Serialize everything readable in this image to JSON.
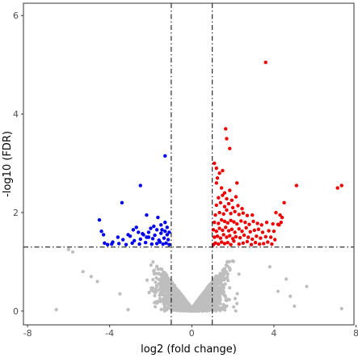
{
  "chart_data": {
    "type": "scatter",
    "xlabel": "log2 (fold change)",
    "ylabel": "-log10 (FDR)",
    "xlim": [
      -8.2,
      7.9
    ],
    "ylim": [
      -0.28,
      6.25
    ],
    "x_ticks": [
      -8,
      -4,
      0,
      4,
      8
    ],
    "x_tick_labels": [
      "-8",
      "-4",
      "0",
      "4",
      "8"
    ],
    "y_ticks": [
      0,
      2,
      4,
      6
    ],
    "y_tick_labels": [
      "0",
      "2",
      "4",
      "6"
    ],
    "grid": false,
    "legend": "none",
    "thresholds": {
      "x": [
        -1,
        1
      ],
      "y": 1.3,
      "line_style": "dash-dot"
    },
    "colors": {
      "up": "#ee0000",
      "down": "#0000ee",
      "not_significant": "#bebebe",
      "threshold_line": "#000000",
      "panel_border": "#333333"
    },
    "series": [
      {
        "group": "up",
        "color": "#ee0000",
        "x": [
          3.6,
          1.65,
          1.7,
          1.85,
          1.1,
          1.2,
          1.35,
          1.5,
          1.25,
          2.2,
          7.3,
          7.1,
          5.1,
          4.5,
          4.1,
          4.3,
          4.4,
          4.35,
          4.25,
          1.05,
          1.15,
          1.3,
          1.45,
          1.6,
          1.75,
          1.9,
          2.05,
          2.3,
          2.5,
          2.7,
          2.9,
          3.1,
          3.3,
          3.5,
          3.7,
          3.9,
          1.1,
          1.25,
          1.4,
          1.55,
          1.7,
          1.85,
          2.0,
          2.15,
          2.35,
          2.55,
          2.75,
          2.95,
          3.15,
          3.35,
          3.6,
          3.85,
          4.05,
          1.05,
          1.2,
          1.35,
          1.5,
          1.65,
          1.8,
          1.95,
          2.1,
          2.3,
          2.45,
          2.65,
          2.85,
          3.05,
          3.25,
          3.45,
          3.75,
          4.0,
          1.1,
          1.3,
          1.45,
          1.6,
          1.75,
          1.9,
          2.05,
          2.2,
          2.4,
          2.6,
          2.8,
          3.0,
          3.2,
          3.4,
          3.65,
          3.95,
          4.2,
          1.15,
          1.35,
          1.55,
          1.7,
          1.9,
          2.1,
          2.3,
          2.5,
          2.7,
          2.95,
          1.2,
          1.4,
          1.6,
          1.8,
          2.0,
          2.25,
          2.45,
          1.3,
          1.5,
          1.7,
          1.95,
          2.15,
          1.45,
          1.85,
          1.2,
          1.6
        ],
        "y": [
          5.05,
          3.7,
          3.5,
          3.3,
          3.0,
          2.9,
          2.8,
          2.85,
          2.7,
          2.6,
          2.55,
          2.5,
          2.55,
          2.2,
          2.0,
          1.95,
          1.9,
          1.8,
          1.75,
          1.35,
          1.38,
          1.36,
          1.4,
          1.37,
          1.39,
          1.35,
          1.42,
          1.36,
          1.38,
          1.41,
          1.35,
          1.39,
          1.36,
          1.37,
          1.4,
          1.36,
          1.5,
          1.52,
          1.48,
          1.55,
          1.5,
          1.53,
          1.47,
          1.51,
          1.49,
          1.54,
          1.5,
          1.46,
          1.52,
          1.48,
          1.51,
          1.5,
          1.45,
          1.65,
          1.62,
          1.68,
          1.64,
          1.7,
          1.63,
          1.66,
          1.6,
          1.67,
          1.62,
          1.69,
          1.61,
          1.64,
          1.66,
          1.6,
          1.63,
          1.62,
          1.8,
          1.78,
          1.85,
          1.82,
          1.79,
          1.84,
          1.81,
          1.77,
          1.83,
          1.8,
          1.76,
          1.82,
          1.78,
          1.75,
          1.8,
          1.77,
          1.76,
          1.95,
          2.0,
          1.97,
          2.05,
          1.98,
          2.02,
          1.96,
          1.99,
          1.94,
          1.95,
          2.15,
          2.2,
          2.12,
          2.18,
          2.1,
          2.14,
          2.08,
          2.3,
          2.35,
          2.28,
          2.25,
          2.32,
          2.5,
          2.45,
          2.6,
          2.4
        ]
      },
      {
        "group": "down",
        "color": "#0000ee",
        "x": [
          -1.3,
          -2.5,
          -4.5,
          -3.4,
          -2.2,
          -1.65,
          -1.5,
          -1.3,
          -1.2,
          -1.45,
          -1.85,
          -2.1,
          -2.35,
          -2.6,
          -2.85,
          -3.1,
          -3.35,
          -3.6,
          -3.85,
          -4.1,
          -4.3,
          -4.4,
          -1.1,
          -1.25,
          -1.4,
          -1.55,
          -1.7,
          -1.95,
          -2.25,
          -2.55,
          -2.9,
          -3.2,
          -3.55,
          -3.9,
          -4.25,
          -1.15,
          -1.35,
          -1.6,
          -1.9,
          -2.2,
          -2.5,
          -2.8,
          -3.0,
          -1.2,
          -1.5,
          -1.8,
          -2.1,
          -2.4,
          -1.3,
          -1.7,
          -2.0,
          -2.7,
          -1.1
        ],
        "y": [
          3.15,
          2.55,
          1.85,
          2.2,
          1.95,
          1.9,
          1.75,
          1.8,
          1.7,
          1.65,
          1.72,
          1.6,
          1.55,
          1.6,
          1.65,
          1.55,
          1.45,
          1.5,
          1.4,
          1.35,
          1.55,
          1.62,
          1.35,
          1.38,
          1.36,
          1.4,
          1.37,
          1.36,
          1.39,
          1.36,
          1.38,
          1.35,
          1.37,
          1.36,
          1.38,
          1.45,
          1.48,
          1.44,
          1.47,
          1.5,
          1.46,
          1.43,
          1.52,
          1.55,
          1.58,
          1.54,
          1.5,
          1.57,
          1.62,
          1.65,
          1.68,
          1.7,
          1.6
        ]
      },
      {
        "group": "not_significant",
        "color": "#bebebe",
        "x": [
          -6.6,
          -5.3,
          -3.1,
          -5.8,
          -4.6,
          4.6,
          5.0,
          5.6,
          7.3,
          4.2,
          -6.0,
          -4.9,
          -3.5,
          3.8,
          4.8
        ],
        "y": [
          0.03,
          0.8,
          0.03,
          1.2,
          0.6,
          0.65,
          0.1,
          0.5,
          0.05,
          0.4,
          1.25,
          0.7,
          0.35,
          0.9,
          0.3
        ],
        "note": "cloud of many further non-significant genes forming a V-shaped band between x=-5 and x=4.5, y below 1.3"
      }
    ]
  }
}
